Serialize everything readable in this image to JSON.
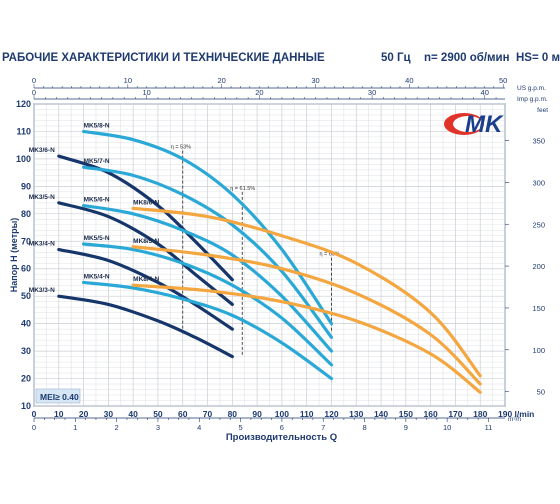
{
  "header": {
    "title": "РАБОЧИЕ ХАРАКТЕРИСТИКИ И ТЕХНИЧЕСКИЕ ДАННЫЕ",
    "freq": "50 Гц",
    "speed": "n= 2900 об/мин",
    "hs": "HS= 0 м"
  },
  "logo": {
    "text": "MK",
    "colors": {
      "blue": "#1b3f8f",
      "red": "#e0332a"
    }
  },
  "colors": {
    "grid": "#c9cdd3",
    "axis": "#1e3a70",
    "mk_dark": "#16366b",
    "mk_mid": "#1f6aa8",
    "mk_light": "#2aa8d6",
    "mk8": "#f4a640"
  },
  "chart_data": {
    "type": "line",
    "title": "",
    "xlabel": "Производительность Q",
    "ylabel": "Напор H (метры)",
    "x_unit": "l/min",
    "xlim": [
      0,
      190
    ],
    "ylim": [
      10,
      120
    ],
    "x_ticks": [
      0,
      10,
      20,
      30,
      40,
      50,
      60,
      70,
      80,
      90,
      100,
      110,
      120,
      130,
      140,
      150,
      160,
      170,
      180,
      190
    ],
    "x_tick_labels": [
      "0",
      "10",
      "20",
      "30",
      "40",
      "50",
      "60",
      "70",
      "80",
      "90",
      "100",
      "110",
      "120",
      "130",
      "140",
      "150",
      "160",
      "170",
      "180",
      "190 l/min"
    ],
    "y_ticks": [
      10,
      20,
      30,
      40,
      50,
      60,
      70,
      80,
      90,
      100,
      110,
      120
    ],
    "top_axes": [
      {
        "unit": "US g.p.m.",
        "factor": 0.264172,
        "ticks": [
          0,
          10,
          20,
          30,
          40,
          50
        ]
      },
      {
        "unit": "Imp g.p.m.",
        "factor": 0.219969,
        "ticks": [
          0,
          10,
          20,
          30,
          40
        ]
      }
    ],
    "bottom_axis2": {
      "unit": "m³/h",
      "factor": 0.06,
      "ticks": [
        0,
        1,
        2,
        3,
        4,
        5,
        6,
        7,
        8,
        9,
        10,
        11
      ]
    },
    "right_axis": {
      "unit": "feet",
      "factor": 3.28084,
      "ticks": [
        50,
        100,
        150,
        200,
        250,
        300,
        350
      ]
    },
    "mei_label": "MEI≥ 0.40",
    "series": [
      {
        "name": "MK3/3-N",
        "color": "mk_dark",
        "x": [
          10,
          30,
          50,
          65,
          80
        ],
        "y": [
          50,
          47,
          41,
          35,
          28
        ]
      },
      {
        "name": "MK3/4-N",
        "color": "mk_dark",
        "x": [
          10,
          30,
          50,
          65,
          80
        ],
        "y": [
          67,
          63,
          55,
          47,
          38
        ]
      },
      {
        "name": "MK3/5-N",
        "color": "mk_dark",
        "x": [
          10,
          30,
          50,
          65,
          80
        ],
        "y": [
          84,
          79,
          69,
          58,
          47
        ]
      },
      {
        "name": "MK3/6-N",
        "color": "mk_dark",
        "x": [
          10,
          30,
          50,
          65,
          80
        ],
        "y": [
          101,
          95,
          83,
          70,
          56
        ]
      },
      {
        "name": "MK5/4-N",
        "color": "mk_light",
        "x": [
          20,
          40,
          60,
          80,
          100,
          120
        ],
        "y": [
          55,
          53,
          49,
          43,
          33,
          20
        ]
      },
      {
        "name": "MK5/5-N",
        "color": "mk_light",
        "x": [
          20,
          40,
          60,
          80,
          100,
          120
        ],
        "y": [
          69,
          67,
          62,
          54,
          42,
          25
        ]
      },
      {
        "name": "MK5/6-N",
        "color": "mk_light",
        "x": [
          20,
          40,
          60,
          80,
          100,
          120
        ],
        "y": [
          83,
          80,
          74,
          65,
          50,
          30
        ]
      },
      {
        "name": "MK5/7-N",
        "color": "mk_light",
        "x": [
          20,
          40,
          60,
          80,
          100,
          120
        ],
        "y": [
          97,
          94,
          87,
          76,
          59,
          35
        ]
      },
      {
        "name": "MK5/8-N",
        "color": "mk_light",
        "x": [
          20,
          40,
          60,
          80,
          100,
          120
        ],
        "y": [
          110,
          107,
          100,
          87,
          67,
          40
        ]
      },
      {
        "name": "MK8/4-N",
        "color": "mk8",
        "x": [
          40,
          70,
          100,
          130,
          160,
          180
        ],
        "y": [
          54,
          52,
          48,
          41,
          29,
          15
        ]
      },
      {
        "name": "MK8/5-N",
        "color": "mk8",
        "x": [
          40,
          70,
          100,
          130,
          160,
          180
        ],
        "y": [
          68,
          65,
          60,
          51,
          36,
          18
        ]
      },
      {
        "name": "MK8/6-N",
        "color": "mk8",
        "x": [
          40,
          70,
          100,
          130,
          160,
          180
        ],
        "y": [
          82,
          79,
          72,
          62,
          44,
          21
        ]
      }
    ],
    "efficiency_lines": [
      {
        "label": "η = 53%",
        "x": 60,
        "y0": 36,
        "y1": 103
      },
      {
        "label": "η = 61.5%",
        "x": 84,
        "y0": 28,
        "y1": 88
      },
      {
        "label": "η = 65%",
        "x": 120,
        "y0": 37,
        "y1": 64
      }
    ]
  }
}
